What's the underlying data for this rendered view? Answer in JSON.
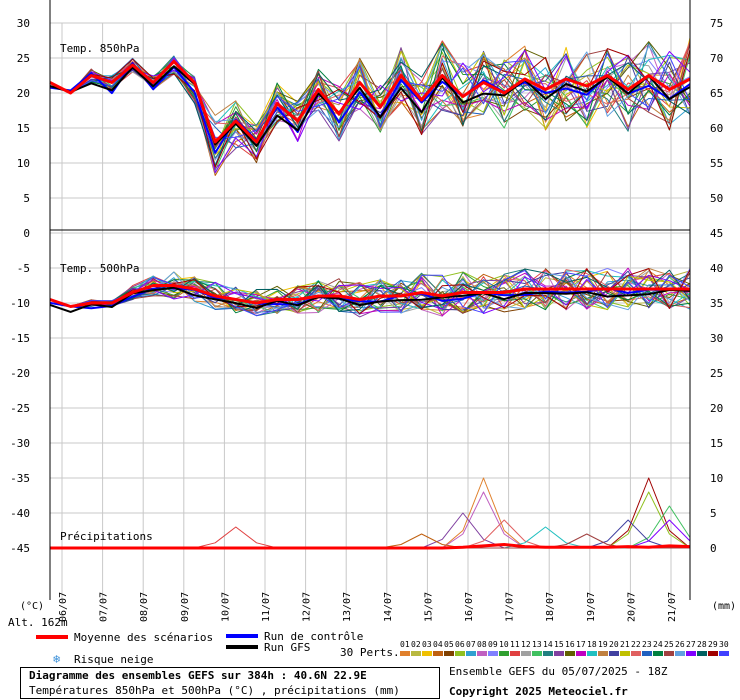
{
  "chart_data": {
    "type": "line",
    "title": "Diagramme des ensembles GEFS sur 384h : 40.6N 22.9E",
    "subtitle": "Températures 850hPa et 500hPa (°C) , précipitations (mm)",
    "run_label": "Ensemble GEFS du 05/07/2025 - 18Z",
    "copyright": "Copyright 2025 Meteociel.fr",
    "altitude": "Alt. 162m",
    "left_unit": "(°C)",
    "right_unit": "(mm)",
    "panel_labels": [
      "Temp. 850hPa",
      "Temp. 500hPa",
      "Précipitations"
    ],
    "dates": [
      "06/07",
      "07/07",
      "08/07",
      "09/07",
      "10/07",
      "11/07",
      "12/07",
      "13/07",
      "14/07",
      "15/07",
      "16/07",
      "17/07",
      "18/07",
      "19/07",
      "20/07",
      "21/07"
    ],
    "left_ticks": [
      30,
      25,
      20,
      15,
      10,
      5,
      0,
      -5,
      -10,
      -15,
      -20,
      -25,
      -30,
      -35,
      -40,
      -45
    ],
    "right_ticks": [
      75,
      70,
      65,
      60,
      55,
      50,
      45,
      40,
      35,
      30,
      25,
      20,
      15,
      10,
      5,
      0
    ],
    "legend": {
      "mean": "Moyenne des scénarios",
      "control": "Run de contrôle",
      "gfs": "Run GFS",
      "snow": "Risque neige",
      "perts": "30 Perts.",
      "member_ids": [
        "01",
        "02",
        "03",
        "04",
        "05",
        "06",
        "07",
        "08",
        "09",
        "10",
        "11",
        "12",
        "13",
        "14",
        "15",
        "16",
        "17",
        "18",
        "19",
        "20",
        "21",
        "22",
        "23",
        "24",
        "25",
        "26",
        "27",
        "28",
        "29",
        "30"
      ]
    },
    "colors": {
      "mean": "#ff0000",
      "control": "#0000ff",
      "gfs": "#000000",
      "members": [
        "#e0802c",
        "#b8b840",
        "#f0c000",
        "#c06010",
        "#804000",
        "#90c020",
        "#30a0d0",
        "#c060c0",
        "#8080ff",
        "#30a030",
        "#e04040",
        "#a0a0a0",
        "#40c060",
        "#208080",
        "#8040a0",
        "#606000",
        "#c000c0",
        "#20c0c0",
        "#c08040",
        "#4040a0",
        "#c0c000",
        "#e06060",
        "#2060c0",
        "#008040",
        "#a04040",
        "#60a0e0",
        "#8000ff",
        "#006060",
        "#a00000",
        "#4040ff"
      ]
    },
    "t850": {
      "mean": [
        21.5,
        20,
        22.5,
        21.5,
        24,
        21.5,
        24.5,
        21.5,
        13,
        16,
        13,
        18.5,
        16,
        20.5,
        17,
        21.5,
        18,
        22.5,
        19,
        22.5,
        19.5,
        21.5,
        20,
        22,
        20.5,
        22,
        21,
        22.5,
        20.5,
        22.5,
        20.5,
        22
      ],
      "min_offset": [
        0,
        0,
        1,
        1,
        1,
        1,
        2,
        3,
        5,
        4,
        3,
        3,
        3,
        3,
        4,
        4,
        4,
        4,
        5,
        5,
        5,
        5,
        5,
        5,
        6,
        6,
        6,
        6,
        6,
        6,
        6,
        6
      ],
      "max_offset": [
        0,
        0,
        1,
        1,
        1,
        1,
        1,
        1,
        4,
        3,
        3,
        3,
        3,
        3,
        4,
        4,
        4,
        4,
        4,
        5,
        5,
        5,
        5,
        5,
        5,
        5,
        5,
        5,
        5,
        5,
        6,
        6
      ]
    },
    "t500": {
      "mean": [
        -9.5,
        -10.5,
        -10,
        -10,
        -8.5,
        -7.5,
        -7.5,
        -8,
        -9,
        -9.5,
        -10,
        -9.5,
        -9.5,
        -9,
        -9,
        -9.5,
        -9,
        -9,
        -8.5,
        -9,
        -8.5,
        -8.5,
        -8.5,
        -8,
        -8,
        -8,
        -8,
        -8,
        -8,
        -8,
        -8,
        -8
      ],
      "spread": [
        0,
        0,
        0.5,
        0.5,
        1,
        1.5,
        2,
        2,
        2,
        2,
        2,
        2,
        2,
        2.5,
        2.5,
        2.5,
        2.5,
        2.5,
        3,
        3,
        3,
        3,
        3,
        3,
        3,
        3,
        3,
        3,
        3,
        3,
        3,
        3
      ]
    },
    "precip": {
      "mean": [
        0,
        0,
        0,
        0,
        0,
        0,
        0,
        0,
        0,
        0,
        0,
        0,
        0,
        0,
        0,
        0,
        0,
        0,
        0,
        0,
        0.1,
        0.3,
        0.5,
        0.2,
        0.1,
        0.1,
        0.1,
        0.1,
        0.2,
        0.1,
        0.3,
        0.2
      ],
      "peaks": [
        [
          21,
          10
        ],
        [
          21,
          8
        ],
        [
          20,
          5
        ],
        [
          22,
          4
        ],
        [
          29,
          10
        ],
        [
          29,
          8
        ],
        [
          30,
          6
        ],
        [
          28,
          4
        ],
        [
          30,
          4
        ],
        [
          18,
          2
        ],
        [
          9,
          3
        ],
        [
          24,
          3
        ],
        [
          26,
          2
        ]
      ]
    }
  }
}
